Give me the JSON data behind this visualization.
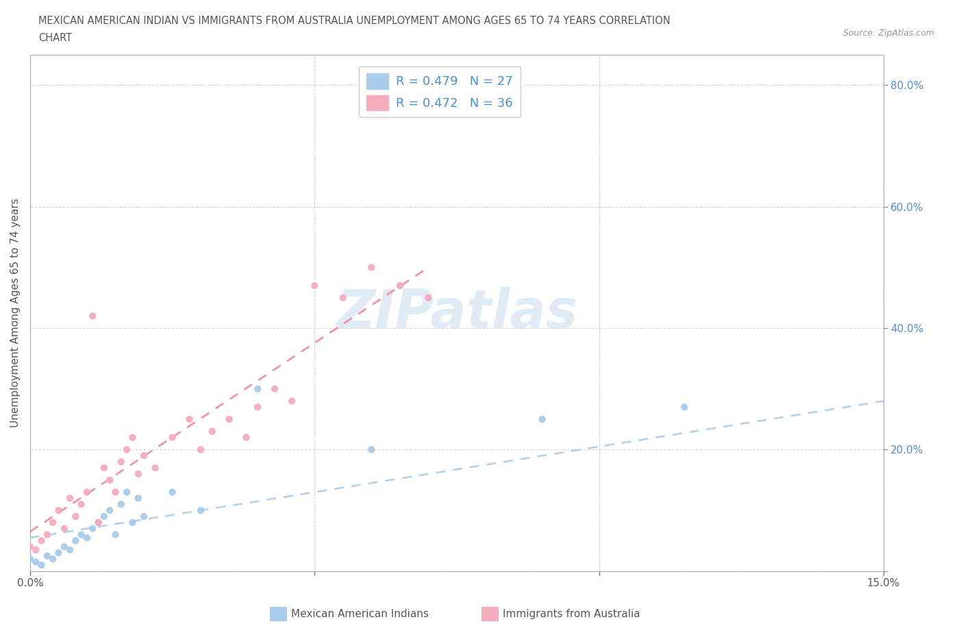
{
  "title_line1": "MEXICAN AMERICAN INDIAN VS IMMIGRANTS FROM AUSTRALIA UNEMPLOYMENT AMONG AGES 65 TO 74 YEARS CORRELATION",
  "title_line2": "CHART",
  "source": "Source: ZipAtlas.com",
  "ylabel": "Unemployment Among Ages 65 to 74 years",
  "watermark": "ZIPatlas",
  "xlim": [
    0.0,
    0.15
  ],
  "ylim": [
    0.0,
    0.85
  ],
  "xticks": [
    0.0,
    0.05,
    0.1,
    0.15
  ],
  "xtick_labels": [
    "0.0%",
    "",
    "",
    "15.0%"
  ],
  "yticks": [
    0.0,
    0.2,
    0.4,
    0.6,
    0.8
  ],
  "ytick_labels": [
    "",
    "20.0%",
    "40.0%",
    "60.0%",
    "80.0%"
  ],
  "blue_scatter_color": "#A8CCEA",
  "blue_line_color": "#A8CCEA",
  "pink_scatter_color": "#F4ABBE",
  "pink_line_color": "#F08098",
  "legend_r1_text": "R = 0.479   N = 27",
  "legend_r2_text": "R = 0.472   N = 36",
  "legend_label1": "Mexican American Indians",
  "legend_label2": "Immigrants from Australia",
  "legend_text_color": "#4A90D9",
  "blue_scatter_x": [
    0.0,
    0.001,
    0.002,
    0.003,
    0.004,
    0.005,
    0.006,
    0.007,
    0.008,
    0.009,
    0.01,
    0.011,
    0.012,
    0.013,
    0.014,
    0.015,
    0.016,
    0.017,
    0.018,
    0.019,
    0.02,
    0.025,
    0.03,
    0.04,
    0.06,
    0.09,
    0.115
  ],
  "blue_scatter_y": [
    0.02,
    0.015,
    0.01,
    0.025,
    0.02,
    0.03,
    0.04,
    0.035,
    0.05,
    0.06,
    0.055,
    0.07,
    0.08,
    0.09,
    0.1,
    0.06,
    0.11,
    0.13,
    0.08,
    0.12,
    0.09,
    0.13,
    0.1,
    0.3,
    0.2,
    0.25,
    0.27
  ],
  "pink_scatter_x": [
    0.0,
    0.001,
    0.002,
    0.003,
    0.004,
    0.005,
    0.006,
    0.007,
    0.008,
    0.009,
    0.01,
    0.011,
    0.012,
    0.013,
    0.014,
    0.015,
    0.016,
    0.017,
    0.018,
    0.019,
    0.02,
    0.022,
    0.025,
    0.028,
    0.03,
    0.032,
    0.035,
    0.038,
    0.04,
    0.043,
    0.046,
    0.05,
    0.055,
    0.06,
    0.065,
    0.07
  ],
  "pink_scatter_y": [
    0.04,
    0.035,
    0.05,
    0.06,
    0.08,
    0.1,
    0.07,
    0.12,
    0.09,
    0.11,
    0.13,
    0.42,
    0.08,
    0.17,
    0.15,
    0.13,
    0.18,
    0.2,
    0.22,
    0.16,
    0.19,
    0.17,
    0.22,
    0.25,
    0.2,
    0.23,
    0.25,
    0.22,
    0.27,
    0.3,
    0.28,
    0.47,
    0.45,
    0.5,
    0.47,
    0.45
  ],
  "blue_trend_x": [
    0.0,
    0.15
  ],
  "blue_trend_y": [
    0.055,
    0.28
  ],
  "pink_trend_x": [
    0.0,
    0.07
  ],
  "pink_trend_y": [
    0.065,
    0.5
  ],
  "grid_color": "#CCCCCC",
  "background_color": "#FFFFFF",
  "title_color": "#555555",
  "axis_color": "#AAAAAA",
  "tick_color": "#555555",
  "ytick_color": "#4A90D9"
}
